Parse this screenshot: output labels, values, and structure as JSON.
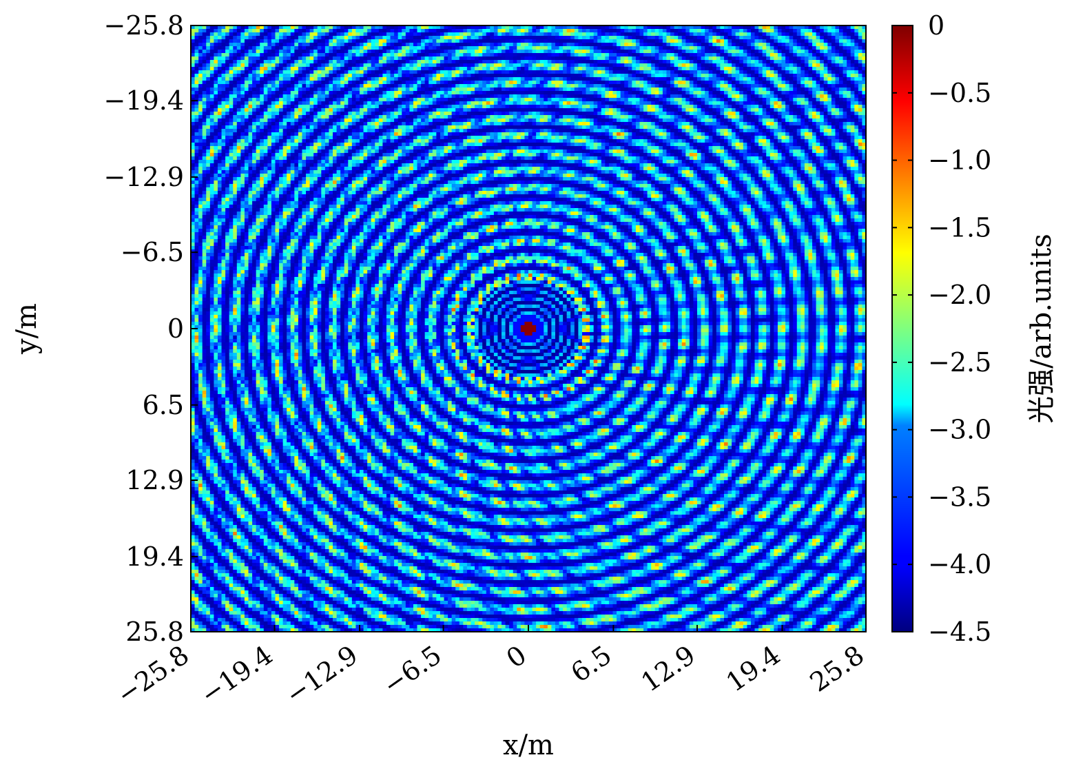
{
  "chart_data": {
    "type": "heatmap",
    "title": "",
    "xlabel": "x/m",
    "ylabel": "y/m",
    "xlim": [
      -25.8,
      25.8
    ],
    "ylim": [
      -25.8,
      25.8
    ],
    "y_inverted": true,
    "x_ticks": [
      -25.8,
      -19.4,
      -12.9,
      -6.5,
      0,
      6.5,
      12.9,
      19.4,
      25.8
    ],
    "x_tick_labels": [
      "−25.8",
      "−19.4",
      "−12.9",
      "−6.5",
      "0",
      "6.5",
      "12.9",
      "19.4",
      "25.8"
    ],
    "y_ticks": [
      -25.8,
      -19.4,
      -12.9,
      -6.5,
      0,
      6.5,
      12.9,
      19.4,
      25.8
    ],
    "y_tick_labels": [
      "−25.8",
      "−19.4",
      "−12.9",
      "−6.5",
      "0",
      "6.5",
      "12.9",
      "19.4",
      "25.8"
    ],
    "colorbar": {
      "label": "光强/arb.units",
      "range": [
        -4.5,
        0
      ],
      "ticks": [
        0,
        -0.5,
        -1.0,
        -1.5,
        -2.0,
        -2.5,
        -3.0,
        -3.5,
        -4.0,
        -4.5
      ],
      "tick_labels": [
        "0",
        "−0.5",
        "−1.0",
        "−1.5",
        "−2.0",
        "−2.5",
        "−3.0",
        "−3.5",
        "−4.0",
        "−4.5"
      ],
      "colormap": "jet"
    },
    "pattern": "concentric interference rings with a bright central peak at (0, 0) near 0; surrounding field mostly between -4.5 and -2.5"
  }
}
